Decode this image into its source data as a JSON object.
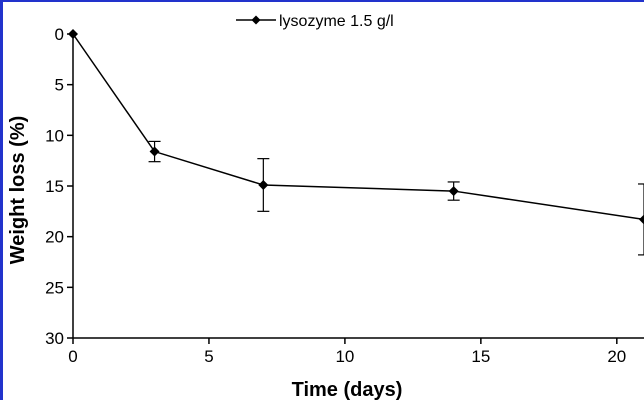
{
  "chart_data": {
    "type": "line",
    "title": "",
    "xlabel": "Time (days)",
    "ylabel": "Weight loss (%)",
    "xlim": [
      0,
      21
    ],
    "ylim": [
      0,
      30
    ],
    "y_inverted": true,
    "x_ticks": [
      0,
      5,
      10,
      15,
      20
    ],
    "y_ticks": [
      0,
      5,
      10,
      15,
      20,
      25,
      30
    ],
    "grid": false,
    "legend_position": "top-center",
    "series": [
      {
        "name": "lysozyme 1.5 g/l",
        "marker": "diamond",
        "color": "#000000",
        "x": [
          0,
          3,
          7,
          14,
          21
        ],
        "y": [
          0,
          11.6,
          14.9,
          15.5,
          18.3
        ],
        "error": [
          0,
          1.0,
          2.6,
          0.9,
          3.5
        ]
      }
    ]
  }
}
